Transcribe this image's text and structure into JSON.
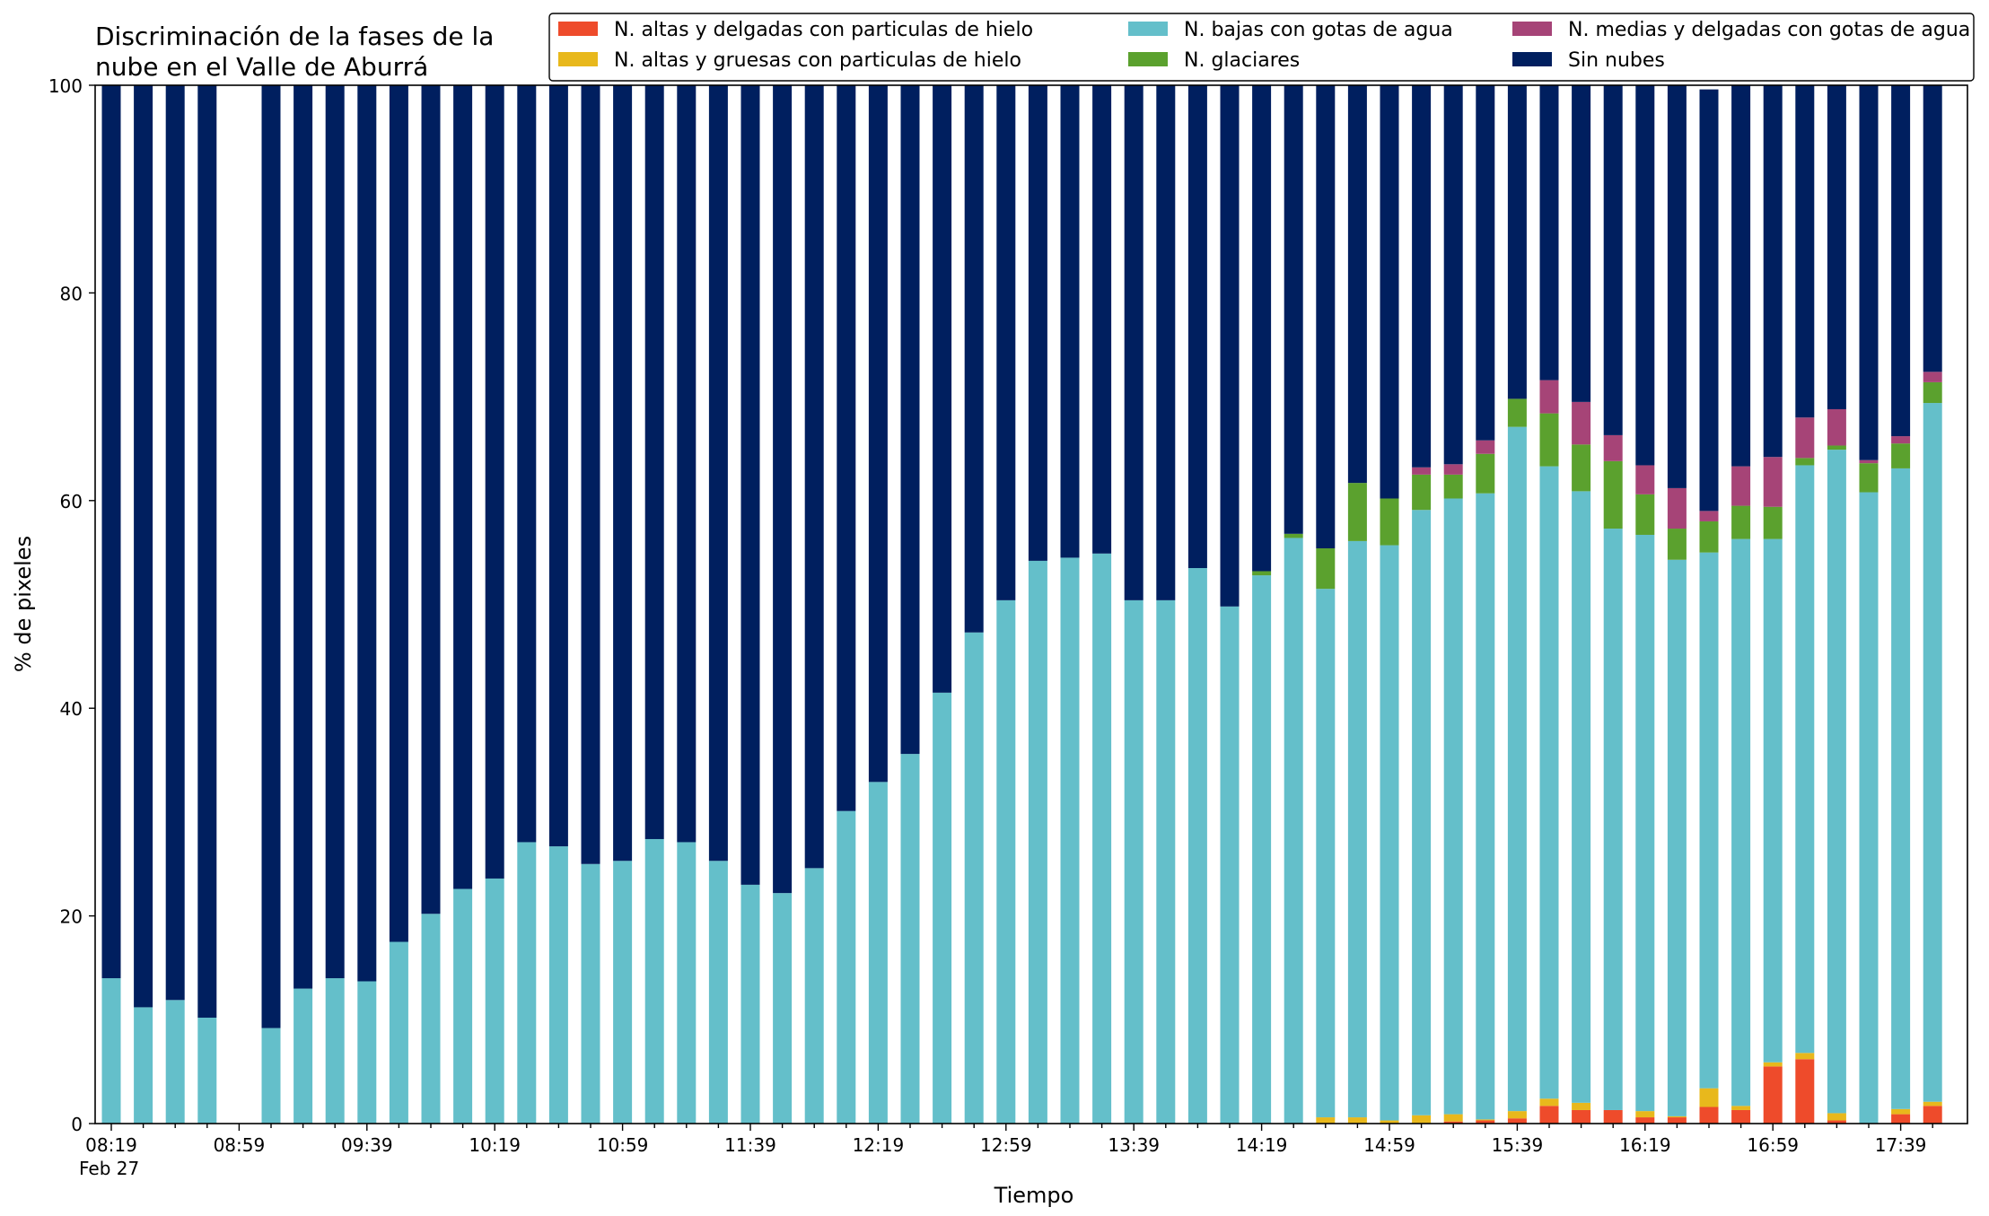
{
  "chart_data": {
    "type": "bar",
    "stacked": true,
    "title_lines": [
      "Discriminación de la fases de la",
      "nube en el Valle de Aburrá"
    ],
    "xlabel": "Tiempo",
    "ylabel": "% de pixeles",
    "ylim": [
      0,
      100
    ],
    "yticks": [
      0,
      20,
      40,
      60,
      80,
      100
    ],
    "xtick_labels": [
      "08:19",
      "08:59",
      "09:39",
      "10:19",
      "10:59",
      "11:39",
      "12:19",
      "12:59",
      "13:39",
      "14:19",
      "14:59",
      "15:39",
      "16:19",
      "16:59",
      "17:39"
    ],
    "xtick_sublabel": "Feb 27",
    "legend_position": "top-right",
    "categories": [
      "08:19",
      "08:29",
      "08:39",
      "08:49",
      "08:59",
      "09:09",
      "09:19",
      "09:29",
      "09:39",
      "09:49",
      "09:59",
      "10:09",
      "10:19",
      "10:29",
      "10:39",
      "10:49",
      "10:59",
      "11:09",
      "11:19",
      "11:29",
      "11:39",
      "11:49",
      "11:59",
      "12:09",
      "12:19",
      "12:29",
      "12:39",
      "12:49",
      "12:59",
      "13:09",
      "13:19",
      "13:29",
      "13:39",
      "13:49",
      "13:59",
      "14:09",
      "14:19",
      "14:29",
      "14:39",
      "14:49",
      "14:59",
      "15:09",
      "15:19",
      "15:29",
      "15:39",
      "15:49",
      "15:59",
      "16:09",
      "16:19",
      "16:29",
      "16:39",
      "16:49",
      "16:59",
      "17:09",
      "17:19",
      "17:29",
      "17:39",
      "17:49"
    ],
    "series": [
      {
        "name": "N. altas y delgadas con particulas de hielo",
        "color": "#ee4b2b",
        "values": [
          0,
          0,
          0,
          0,
          null,
          0,
          0,
          0,
          0,
          0,
          0,
          0,
          0,
          0,
          0,
          0,
          0,
          0,
          0,
          0,
          0,
          0,
          0,
          0,
          0,
          0,
          0,
          0,
          0,
          0,
          0,
          0,
          0,
          0,
          0,
          0,
          0,
          0,
          0,
          0,
          0,
          0,
          0.2,
          0.3,
          0.5,
          1.7,
          1.3,
          1.3,
          0.6,
          0.6,
          1.6,
          1.3,
          5.5,
          6.2,
          0.3,
          0,
          0.9,
          1.7
        ]
      },
      {
        "name": "N. altas y gruesas con particulas de hielo",
        "color": "#e8b81c",
        "values": [
          0,
          0,
          0,
          0,
          null,
          0,
          0,
          0,
          0,
          0,
          0,
          0,
          0,
          0,
          0,
          0,
          0,
          0,
          0,
          0,
          0,
          0,
          0,
          0,
          0,
          0,
          0,
          0,
          0,
          0,
          0,
          0,
          0,
          0,
          0,
          0,
          0,
          0,
          0.6,
          0.6,
          0.3,
          0.8,
          0.7,
          0.1,
          0.7,
          0.7,
          0.7,
          0,
          0.6,
          0.1,
          1.8,
          0.4,
          0.4,
          0.6,
          0.7,
          0,
          0.5,
          0.4
        ]
      },
      {
        "name": "N. bajas con gotas de agua",
        "color": "#64bfca",
        "values": [
          14.0,
          11.2,
          11.9,
          10.2,
          null,
          9.2,
          13.0,
          14.0,
          13.7,
          17.5,
          20.2,
          22.6,
          23.6,
          27.1,
          26.7,
          25.0,
          25.3,
          27.4,
          27.1,
          25.3,
          23.0,
          22.2,
          24.6,
          30.1,
          32.9,
          35.6,
          41.5,
          47.3,
          50.4,
          54.2,
          54.5,
          54.9,
          50.4,
          50.4,
          53.5,
          49.8,
          52.8,
          56.4,
          50.9,
          55.5,
          55.4,
          58.3,
          59.3,
          60.3,
          65.9,
          60.9,
          58.9,
          56.0,
          55.5,
          53.6,
          51.6,
          54.6,
          50.4,
          56.6,
          63.9,
          60.8,
          61.7,
          67.3
        ]
      },
      {
        "name": "N. glaciares",
        "color": "#5ba12e",
        "values": [
          0,
          0,
          0,
          0,
          null,
          0,
          0,
          0,
          0,
          0,
          0,
          0,
          0,
          0,
          0,
          0,
          0,
          0,
          0,
          0,
          0,
          0,
          0,
          0,
          0,
          0,
          0,
          0,
          0,
          0,
          0,
          0,
          0,
          0,
          0,
          0,
          0.4,
          0.4,
          3.9,
          5.6,
          4.5,
          3.4,
          2.3,
          3.8,
          2.7,
          5.1,
          4.5,
          6.5,
          3.9,
          3.0,
          3.0,
          3.2,
          3.1,
          0.7,
          0.4,
          2.8,
          2.4,
          2.0
        ]
      },
      {
        "name": "N. medias y delgadas con gotas de agua",
        "color": "#a64477",
        "values": [
          0,
          0,
          0,
          0,
          null,
          0,
          0,
          0,
          0,
          0,
          0,
          0,
          0,
          0,
          0,
          0,
          0,
          0,
          0,
          0,
          0,
          0,
          0,
          0,
          0,
          0,
          0,
          0,
          0,
          0,
          0,
          0,
          0,
          0,
          0,
          0,
          0,
          0,
          0,
          0,
          0,
          0.7,
          1.0,
          1.3,
          0,
          3.2,
          4.1,
          2.5,
          2.8,
          3.9,
          1.0,
          3.8,
          4.8,
          3.9,
          3.5,
          0.3,
          0.7,
          1.0
        ]
      },
      {
        "name": "Sin nubes",
        "color": "#001f5f",
        "values": [
          86.0,
          88.8,
          88.1,
          89.8,
          null,
          90.8,
          87.0,
          86.0,
          86.3,
          82.5,
          79.8,
          77.4,
          76.4,
          72.9,
          73.3,
          75.0,
          74.7,
          72.6,
          72.9,
          74.7,
          77.0,
          77.8,
          75.4,
          69.9,
          67.1,
          64.4,
          58.5,
          52.7,
          49.6,
          45.8,
          45.5,
          45.1,
          49.6,
          49.6,
          46.5,
          50.2,
          46.8,
          43.2,
          44.6,
          38.3,
          39.8,
          36.8,
          36.5,
          34.2,
          30.2,
          28.4,
          30.5,
          33.7,
          36.6,
          38.8,
          40.6,
          36.7,
          35.8,
          32.0,
          31.2,
          36.1,
          33.8,
          27.6
        ]
      }
    ]
  }
}
